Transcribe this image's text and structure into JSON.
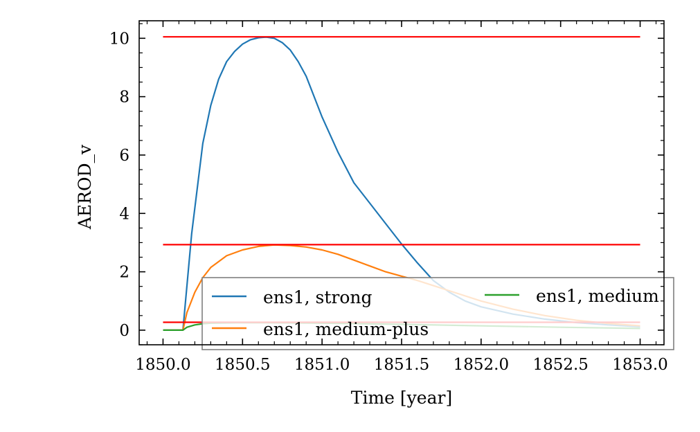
{
  "chart_data": {
    "type": "line",
    "title": "",
    "xlabel": "Time [year]",
    "ylabel": "AEROD_v",
    "xlim": [
      1849.85,
      1853.15
    ],
    "ylim": [
      -0.5,
      10.6
    ],
    "xticks": [
      1850.0,
      1850.5,
      1851.0,
      1851.5,
      1852.0,
      1852.5,
      1853.0
    ],
    "xtick_labels": [
      "1850.0",
      "1850.5",
      "1851.0",
      "1851.5",
      "1852.0",
      "1852.5",
      "1853.0"
    ],
    "yticks": [
      0,
      2,
      4,
      6,
      8,
      10
    ],
    "ytick_labels": [
      "0",
      "2",
      "4",
      "6",
      "8",
      "10"
    ],
    "grid": false,
    "legend": {
      "placement": "lower-right",
      "columns": 2
    },
    "series": [
      {
        "name": "ens1, strong",
        "color": "#1f77b4",
        "x": [
          1850.0,
          1850.125,
          1850.14,
          1850.18,
          1850.25,
          1850.3,
          1850.35,
          1850.4,
          1850.45,
          1850.5,
          1850.55,
          1850.6,
          1850.65,
          1850.7,
          1850.75,
          1850.8,
          1850.85,
          1850.9,
          1851.0,
          1851.1,
          1851.2,
          1851.3,
          1851.4,
          1851.5,
          1851.6,
          1851.7,
          1851.8,
          1851.9,
          1852.0,
          1852.2,
          1852.4,
          1852.6,
          1852.8,
          1853.0
        ],
        "y": [
          0.0,
          0.0,
          0.9,
          3.3,
          6.4,
          7.7,
          8.6,
          9.2,
          9.55,
          9.8,
          9.95,
          10.02,
          10.04,
          10.0,
          9.85,
          9.6,
          9.2,
          8.7,
          7.3,
          6.1,
          5.05,
          4.35,
          3.65,
          2.95,
          2.3,
          1.7,
          1.3,
          1.0,
          0.8,
          0.55,
          0.38,
          0.26,
          0.18,
          0.12
        ]
      },
      {
        "name": "ens1, medium-plus",
        "color": "#ff7f0e",
        "x": [
          1850.0,
          1850.125,
          1850.15,
          1850.2,
          1850.25,
          1850.3,
          1850.4,
          1850.5,
          1850.6,
          1850.7,
          1850.8,
          1850.9,
          1851.0,
          1851.1,
          1851.2,
          1851.3,
          1851.4,
          1851.5,
          1851.6,
          1851.8,
          1852.0,
          1852.2,
          1852.4,
          1852.6,
          1852.8,
          1853.0
        ],
        "y": [
          0.0,
          0.0,
          0.6,
          1.3,
          1.8,
          2.15,
          2.55,
          2.75,
          2.87,
          2.92,
          2.9,
          2.85,
          2.75,
          2.6,
          2.4,
          2.2,
          2.0,
          1.85,
          1.7,
          1.35,
          1.0,
          0.72,
          0.5,
          0.34,
          0.23,
          0.15
        ]
      },
      {
        "name": "ens1, medium",
        "color": "#2ca02c",
        "x": [
          1850.0,
          1850.125,
          1850.15,
          1850.2,
          1850.25,
          1850.3,
          1850.5,
          1850.8,
          1851.0,
          1851.5,
          1852.0,
          1852.5,
          1853.0
        ],
        "y": [
          0.0,
          0.0,
          0.1,
          0.18,
          0.22,
          0.24,
          0.26,
          0.25,
          0.24,
          0.2,
          0.15,
          0.1,
          0.06
        ]
      }
    ],
    "reference_lines": [
      {
        "y": 10.05,
        "color": "#ff0000",
        "x": [
          1850.0,
          1853.0
        ]
      },
      {
        "y": 2.93,
        "color": "#ff0000",
        "x": [
          1850.0,
          1853.0
        ]
      },
      {
        "y": 0.27,
        "color": "#ff0000",
        "x": [
          1850.0,
          1853.0
        ]
      }
    ]
  }
}
